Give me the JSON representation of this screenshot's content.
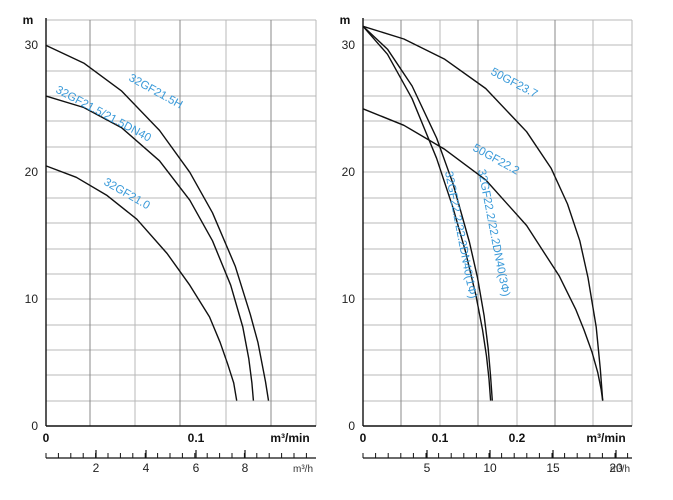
{
  "colors": {
    "curve": "#111111",
    "grid": "#b8b8b8",
    "label": "#3a9ad9",
    "axis": "#111111"
  },
  "chart_data": [
    {
      "type": "line",
      "ylabel": "m",
      "xlabel": "m³/min",
      "xlabel2": "m³/h",
      "xlim": [
        0,
        0.183
      ],
      "ylim": [
        0,
        32
      ],
      "grid": true,
      "y_ticks": [
        "0",
        "10",
        "20",
        "30"
      ],
      "x_ticks": [
        "0",
        "0.1"
      ],
      "x2_ticks": [
        "2",
        "4",
        "6",
        "8"
      ],
      "series": [
        {
          "name": "32GF21.5H",
          "x": [
            0,
            0.025,
            0.05,
            0.075,
            0.095,
            0.11,
            0.125,
            0.135,
            0.14,
            0.145,
            0.147
          ],
          "y": [
            30,
            28.6,
            26.4,
            23.3,
            20.0,
            16.8,
            12.6,
            8.8,
            6.6,
            3.5,
            2
          ]
        },
        {
          "name": "32GF21.5/21.5DN40",
          "x": [
            0,
            0.025,
            0.05,
            0.075,
            0.095,
            0.11,
            0.122,
            0.13,
            0.134,
            0.136,
            0.137
          ],
          "y": [
            26,
            25.1,
            23.5,
            20.9,
            17.8,
            14.6,
            11.1,
            7.8,
            5.3,
            3.4,
            2
          ]
        },
        {
          "name": "32GF21.0",
          "x": [
            0,
            0.02,
            0.04,
            0.06,
            0.08,
            0.095,
            0.108,
            0.115,
            0.12,
            0.124,
            0.126
          ],
          "y": [
            20.5,
            19.6,
            18.2,
            16.3,
            13.6,
            11.1,
            8.6,
            6.6,
            4.9,
            3.4,
            2
          ]
        }
      ]
    },
    {
      "type": "line",
      "ylabel": "m",
      "xlabel": "m³/min",
      "xlabel2": "m³/h",
      "xlim": [
        0,
        0.33
      ],
      "ylim": [
        0,
        32
      ],
      "grid": true,
      "y_ticks": [
        "0",
        "10",
        "20",
        "30"
      ],
      "x_ticks": [
        "0",
        "0.1",
        "0.2"
      ],
      "x2_ticks": [
        "5",
        "10",
        "15",
        "20"
      ],
      "series": [
        {
          "name": "50GF23.7",
          "x": [
            0,
            0.05,
            0.1,
            0.15,
            0.2,
            0.23,
            0.25,
            0.265,
            0.275,
            0.285,
            0.29,
            0.293
          ],
          "y": [
            31.5,
            30.5,
            28.9,
            26.6,
            23.2,
            20.3,
            17.5,
            14.6,
            11.7,
            7.8,
            4.5,
            2
          ]
        },
        {
          "name": "50GF22.2",
          "x": [
            0,
            0.05,
            0.1,
            0.15,
            0.2,
            0.24,
            0.26,
            0.27,
            0.28,
            0.287,
            0.291,
            0.293
          ],
          "y": [
            25,
            23.7,
            21.8,
            19.4,
            15.8,
            11.8,
            9.2,
            7.6,
            5.8,
            4.2,
            2.9,
            2
          ]
        },
        {
          "name": "32GF22.2/22.2DN40(3Φ)",
          "x": [
            0,
            0.03,
            0.06,
            0.09,
            0.11,
            0.13,
            0.14,
            0.148,
            0.153,
            0.156,
            0.158
          ],
          "y": [
            31.5,
            29.7,
            26.8,
            22.7,
            19.1,
            14.5,
            11.7,
            8.7,
            6.1,
            3.9,
            2
          ]
        },
        {
          "name": "32GF22.2/22.2DN40(1Φ)",
          "x": [
            0,
            0.03,
            0.06,
            0.09,
            0.11,
            0.125,
            0.138,
            0.146,
            0.151,
            0.154,
            0.156
          ],
          "y": [
            31.5,
            29.3,
            25.8,
            21.1,
            17.2,
            13.8,
            10.3,
            7.6,
            5.5,
            3.7,
            2
          ]
        }
      ]
    }
  ]
}
